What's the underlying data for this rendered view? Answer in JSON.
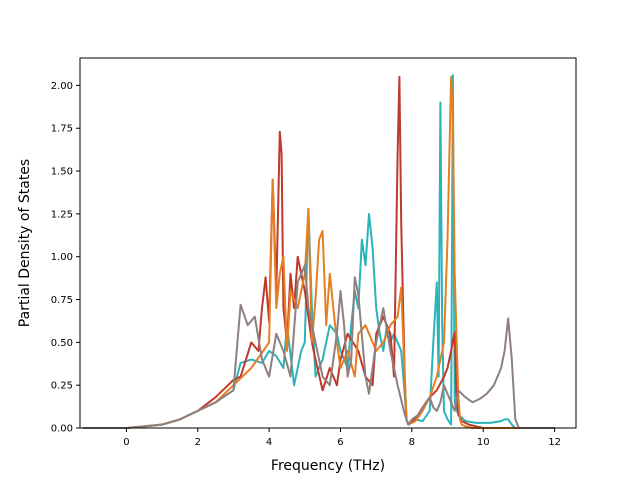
{
  "chart_data": {
    "type": "line",
    "title": "",
    "xlabel": "Frequency (THz)",
    "ylabel": "Partial Density of States",
    "xlim": [
      -1.3,
      12.6
    ],
    "ylim": [
      0,
      2.16
    ],
    "xticks": [
      0,
      2,
      4,
      6,
      8,
      10,
      12
    ],
    "yticks": [
      0.0,
      0.25,
      0.5,
      0.75,
      1.0,
      1.25,
      1.5,
      1.75,
      2.0
    ],
    "xtick_labels": [
      "0",
      "2",
      "4",
      "6",
      "8",
      "10",
      "12"
    ],
    "ytick_labels": [
      "0.00",
      "0.25",
      "0.50",
      "0.75",
      "1.00",
      "1.25",
      "1.50",
      "1.75",
      "2.00"
    ],
    "grid": false,
    "legend": "none",
    "series": [
      {
        "color": "#2ab4b9",
        "x": [
          -1.2,
          0,
          1,
          1.5,
          2,
          2.5,
          3,
          3.2,
          3.5,
          3.8,
          4.0,
          4.2,
          4.4,
          4.5,
          4.7,
          4.9,
          5.0,
          5.1,
          5.2,
          5.3,
          5.5,
          5.7,
          5.9,
          6.0,
          6.2,
          6.3,
          6.4,
          6.5,
          6.6,
          6.7,
          6.8,
          6.9,
          7.0,
          7.1,
          7.2,
          7.3,
          7.4,
          7.5,
          7.6,
          7.7,
          7.8,
          7.85,
          7.9,
          8.1,
          8.3,
          8.5,
          8.6,
          8.7,
          8.75,
          8.8,
          8.85,
          8.9,
          9.0,
          9.1,
          9.15,
          9.2,
          9.3,
          9.5,
          9.8,
          10.0,
          10.2,
          10.5,
          10.6,
          10.7,
          10.8,
          10.9,
          11.2,
          12.0
        ],
        "y": [
          0,
          0,
          0.02,
          0.05,
          0.1,
          0.15,
          0.22,
          0.38,
          0.4,
          0.38,
          0.45,
          0.42,
          0.35,
          0.6,
          0.25,
          0.45,
          0.5,
          1.28,
          0.7,
          0.3,
          0.4,
          0.6,
          0.55,
          0.45,
          0.35,
          0.6,
          0.8,
          0.7,
          1.1,
          0.95,
          1.25,
          1.05,
          0.7,
          0.55,
          0.45,
          0.6,
          0.5,
          0.55,
          0.5,
          0.45,
          0.2,
          0.05,
          0.02,
          0.05,
          0.04,
          0.1,
          0.5,
          0.85,
          0.3,
          1.9,
          0.6,
          0.1,
          0.05,
          0.02,
          2.06,
          0.15,
          0.08,
          0.04,
          0.03,
          0.03,
          0.03,
          0.04,
          0.05,
          0.05,
          0.02,
          0,
          0,
          0
        ]
      },
      {
        "color": "#c0392b",
        "x": [
          -1.2,
          0,
          1,
          1.5,
          2,
          2.5,
          3,
          3.2,
          3.5,
          3.7,
          3.8,
          3.9,
          4.0,
          4.1,
          4.2,
          4.3,
          4.35,
          4.4,
          4.5,
          4.6,
          4.7,
          4.8,
          5.0,
          5.1,
          5.2,
          5.3,
          5.5,
          5.7,
          5.9,
          6.0,
          6.2,
          6.5,
          6.7,
          6.9,
          7.0,
          7.2,
          7.4,
          7.5,
          7.6,
          7.65,
          7.7,
          7.8,
          7.85,
          7.9,
          8.1,
          8.3,
          8.5,
          8.7,
          8.9,
          9.0,
          9.1,
          9.2,
          9.25,
          9.3,
          9.4,
          9.6,
          9.8,
          10.0,
          12.0
        ],
        "y": [
          0,
          0,
          0.02,
          0.05,
          0.1,
          0.18,
          0.28,
          0.3,
          0.5,
          0.45,
          0.7,
          0.88,
          0.62,
          1.45,
          0.8,
          1.73,
          1.6,
          0.7,
          0.5,
          0.9,
          0.7,
          1.0,
          0.8,
          0.65,
          0.5,
          0.4,
          0.22,
          0.35,
          0.25,
          0.4,
          0.55,
          0.45,
          0.3,
          0.25,
          0.55,
          0.65,
          0.55,
          0.3,
          1.6,
          2.05,
          1.2,
          0.3,
          0.05,
          0.02,
          0.05,
          0.12,
          0.18,
          0.22,
          0.3,
          0.35,
          0.45,
          0.56,
          0.2,
          0.08,
          0.04,
          0.02,
          0.01,
          0,
          0
        ]
      },
      {
        "color": "#e67e22",
        "x": [
          -1.2,
          0,
          1,
          1.5,
          2,
          2.5,
          3,
          3.5,
          4.0,
          4.1,
          4.2,
          4.3,
          4.4,
          4.5,
          4.6,
          4.8,
          5.0,
          5.1,
          5.2,
          5.3,
          5.4,
          5.5,
          5.6,
          5.7,
          5.9,
          6.0,
          6.2,
          6.4,
          6.5,
          6.7,
          6.9,
          7.0,
          7.2,
          7.4,
          7.6,
          7.7,
          7.8,
          7.85,
          7.9,
          8.1,
          8.3,
          8.5,
          8.7,
          8.9,
          9.0,
          9.1,
          9.15,
          9.2,
          9.3,
          9.35,
          9.4,
          9.5,
          9.7,
          10.0,
          12.0
        ],
        "y": [
          0,
          0,
          0.02,
          0.05,
          0.1,
          0.15,
          0.25,
          0.35,
          0.5,
          1.45,
          0.7,
          0.9,
          1.0,
          0.45,
          0.8,
          0.7,
          0.9,
          1.28,
          0.5,
          0.75,
          1.1,
          1.15,
          0.6,
          0.9,
          0.5,
          0.35,
          0.45,
          0.3,
          0.55,
          0.6,
          0.5,
          0.45,
          0.5,
          0.6,
          0.65,
          0.82,
          0.3,
          0.05,
          0.02,
          0.04,
          0.1,
          0.18,
          0.3,
          0.5,
          1.1,
          2.05,
          1.8,
          0.9,
          0.2,
          0.05,
          0.02,
          0.01,
          0,
          0,
          0
        ]
      },
      {
        "color": "#8f7f7f",
        "x": [
          -1.2,
          0,
          1,
          1.5,
          2,
          2.5,
          3,
          3.2,
          3.4,
          3.6,
          3.8,
          4.0,
          4.2,
          4.4,
          4.6,
          4.8,
          5.0,
          5.1,
          5.3,
          5.5,
          5.7,
          5.9,
          6.0,
          6.1,
          6.2,
          6.3,
          6.4,
          6.5,
          6.7,
          6.8,
          7.0,
          7.2,
          7.4,
          7.5,
          7.6,
          7.8,
          7.9,
          8.0,
          8.2,
          8.4,
          8.5,
          8.6,
          8.7,
          8.8,
          8.9,
          9.0,
          9.1,
          9.2,
          9.3,
          9.5,
          9.7,
          9.9,
          10.1,
          10.3,
          10.5,
          10.6,
          10.7,
          10.8,
          10.9,
          11.0,
          12.0
        ],
        "y": [
          0,
          0,
          0.02,
          0.05,
          0.1,
          0.15,
          0.22,
          0.72,
          0.6,
          0.65,
          0.4,
          0.3,
          0.55,
          0.45,
          0.3,
          0.85,
          0.95,
          0.7,
          0.5,
          0.3,
          0.25,
          0.55,
          0.8,
          0.6,
          0.3,
          0.4,
          0.88,
          0.78,
          0.3,
          0.2,
          0.5,
          0.7,
          0.45,
          0.35,
          0.25,
          0.08,
          0.02,
          0.05,
          0.08,
          0.15,
          0.18,
          0.12,
          0.1,
          0.15,
          0.25,
          0.2,
          0.15,
          0.1,
          0.22,
          0.18,
          0.15,
          0.17,
          0.2,
          0.25,
          0.35,
          0.45,
          0.64,
          0.4,
          0.05,
          0,
          0
        ]
      }
    ]
  }
}
